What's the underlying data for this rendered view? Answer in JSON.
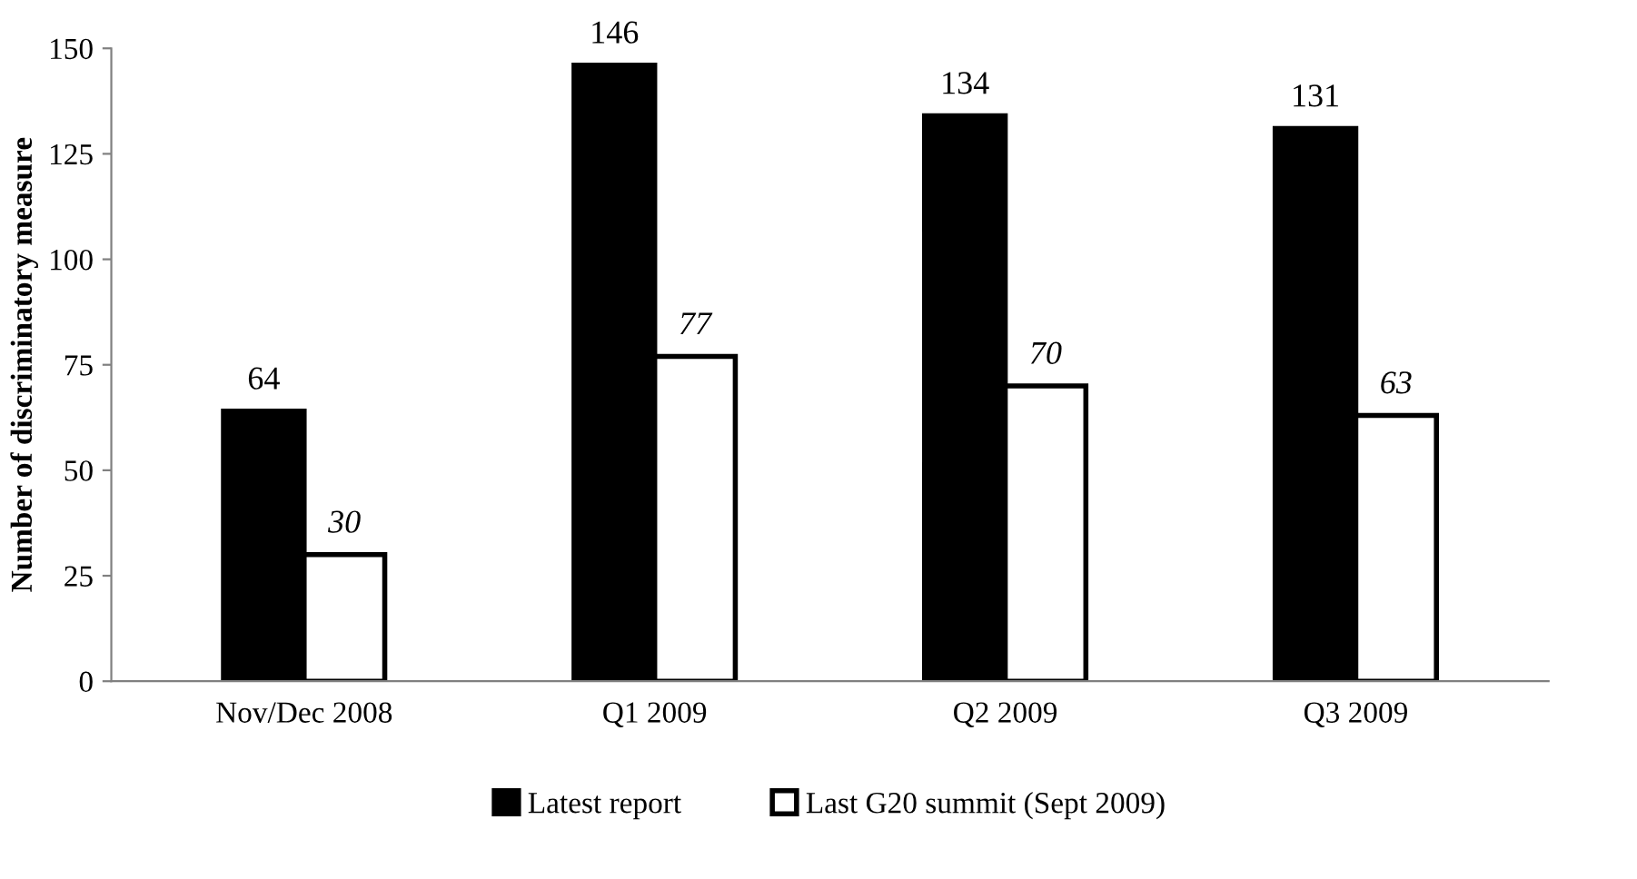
{
  "chart_data": {
    "type": "bar",
    "ylabel": "Number of discriminatory measure",
    "categories": [
      "Nov/Dec 2008",
      "Q1 2009",
      "Q2 2009",
      "Q3 2009"
    ],
    "series": [
      {
        "name": "Latest report",
        "color": "#000000",
        "values": [
          64,
          146,
          134,
          131
        ]
      },
      {
        "name": "Last G20 summit (Sept 2009)",
        "color": "#ffffff",
        "values": [
          30,
          77,
          70,
          63
        ]
      }
    ],
    "ylim": [
      0,
      150
    ],
    "yticks": [
      0,
      25,
      50,
      75,
      100,
      125,
      150
    ],
    "data_labels": true,
    "legend": "bottom",
    "grid": false
  }
}
